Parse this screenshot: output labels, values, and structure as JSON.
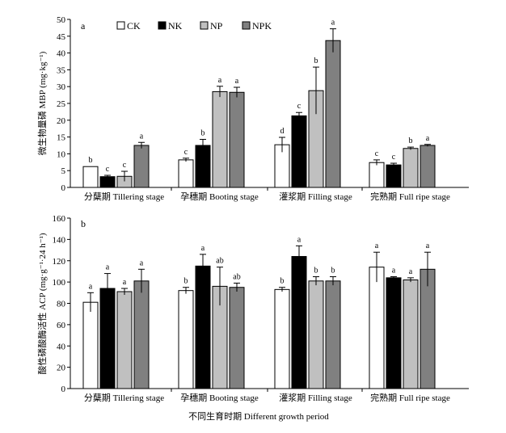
{
  "figure": {
    "xlabel": "不同生育时期 Different growth period",
    "legend": [
      {
        "name": "CK",
        "color": "#ffffff"
      },
      {
        "name": "NK",
        "color": "#000000"
      },
      {
        "name": "NP",
        "color": "#c0c0c0"
      },
      {
        "name": "NPK",
        "color": "#808080"
      }
    ]
  },
  "chart_data": [
    {
      "type": "bar",
      "panel": "a",
      "ylabel": "微生物量磷 MBP (mg·kg⁻¹)",
      "ylim": [
        0,
        50
      ],
      "yticks": [
        "0",
        "5",
        "10",
        "15",
        "20",
        "25",
        "30",
        "35",
        "40",
        "45",
        "50"
      ],
      "categories": [
        "分蘖期 Tillering stage",
        "孕穗期 Booting stage",
        "灌浆期 Filling stage",
        "完熟期 Full ripe stage"
      ],
      "series": [
        {
          "name": "CK",
          "values": [
            6.2,
            8.2,
            12.7,
            7.4
          ],
          "errors": [
            0,
            0.5,
            2.2,
            0.8
          ],
          "letters": [
            "b",
            "c",
            "d",
            "c"
          ]
        },
        {
          "name": "NK",
          "values": [
            3.2,
            12.5,
            21.3,
            6.7
          ],
          "errors": [
            0.4,
            1.8,
            1.0,
            0.5
          ],
          "letters": [
            "c",
            "b",
            "c",
            "c"
          ]
        },
        {
          "name": "NP",
          "values": [
            3.3,
            28.5,
            28.8,
            11.6
          ],
          "errors": [
            1.5,
            1.6,
            7.0,
            0.4
          ],
          "letters": [
            "c",
            "a",
            "b",
            "b"
          ]
        },
        {
          "name": "NPK",
          "values": [
            12.5,
            28.3,
            43.7,
            12.5
          ],
          "errors": [
            0.9,
            1.5,
            3.5,
            0.3
          ],
          "letters": [
            "a",
            "a",
            "a",
            "a"
          ]
        }
      ]
    },
    {
      "type": "bar",
      "panel": "b",
      "ylabel": "酸性磷酸酶活性 ACP (mg·g⁻¹·24 h⁻¹)",
      "ylim": [
        0,
        160
      ],
      "yticks": [
        "0",
        "20",
        "40",
        "60",
        "80",
        "100",
        "120",
        "140",
        "160"
      ],
      "categories": [
        "分蘖期 Tillering stage",
        "孕穗期 Booting stage",
        "灌浆期 Filling stage",
        "完熟期 Full ripe stage"
      ],
      "series": [
        {
          "name": "CK",
          "values": [
            81,
            92,
            93,
            114
          ],
          "errors": [
            9,
            3,
            2,
            14
          ],
          "letters": [
            "a",
            "b",
            "b",
            "a"
          ]
        },
        {
          "name": "NK",
          "values": [
            94,
            115,
            124,
            104
          ],
          "errors": [
            14,
            11,
            10,
            1
          ],
          "letters": [
            "a",
            "a",
            "a",
            "a"
          ]
        },
        {
          "name": "NP",
          "values": [
            91,
            96,
            101,
            102
          ],
          "errors": [
            3,
            18,
            4,
            2
          ],
          "letters": [
            "a",
            "ab",
            "b",
            "a"
          ]
        },
        {
          "name": "NPK",
          "values": [
            101,
            95,
            101,
            112
          ],
          "errors": [
            11,
            4,
            4,
            16
          ],
          "letters": [
            "a",
            "ab",
            "b",
            "a"
          ]
        }
      ]
    }
  ]
}
